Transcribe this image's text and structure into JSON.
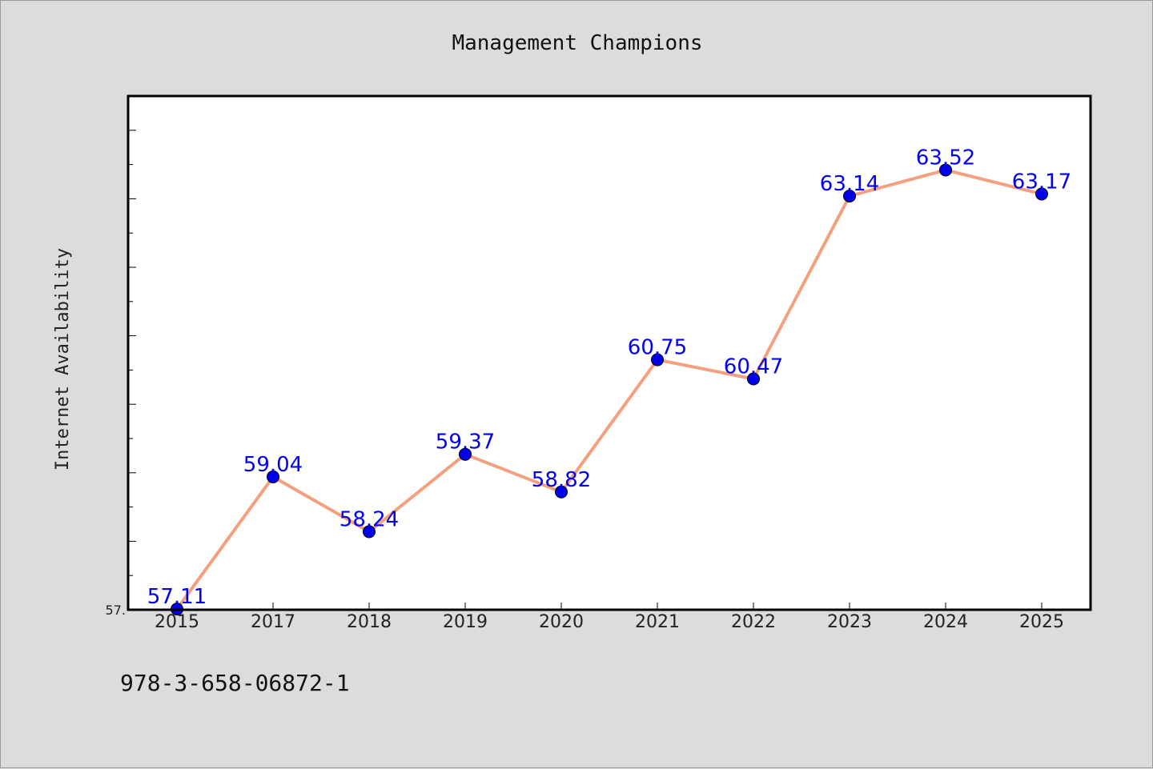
{
  "chart_data": {
    "type": "line",
    "title": "Management Champions",
    "xlabel": "",
    "ylabel": "Internet Availability",
    "categories": [
      "2015",
      "2017",
      "2018",
      "2019",
      "2020",
      "2021",
      "2022",
      "2023",
      "2024",
      "2025"
    ],
    "series": [
      {
        "values": [
          57.11,
          59.04,
          58.24,
          59.37,
          58.82,
          60.75,
          60.47,
          63.14,
          63.52,
          63.17
        ]
      }
    ],
    "data_labels": [
      "57.11",
      "59.04",
      "58.24",
      "59.37",
      "58.82",
      "60.75",
      "60.47",
      "63.14",
      "63.52",
      "63.17"
    ],
    "ylim": [
      57.1,
      64.6
    ],
    "y_tick_label_shown": "57.",
    "grid": false,
    "legend": "none",
    "colors": {
      "line": "#f4a07e",
      "marker": "#0000ee",
      "data_label": "#0000ee",
      "plot_background": "#ffffff",
      "figure_background": "#dcdcdc"
    }
  },
  "footer": {
    "isbn": "978-3-658-06872-1"
  }
}
